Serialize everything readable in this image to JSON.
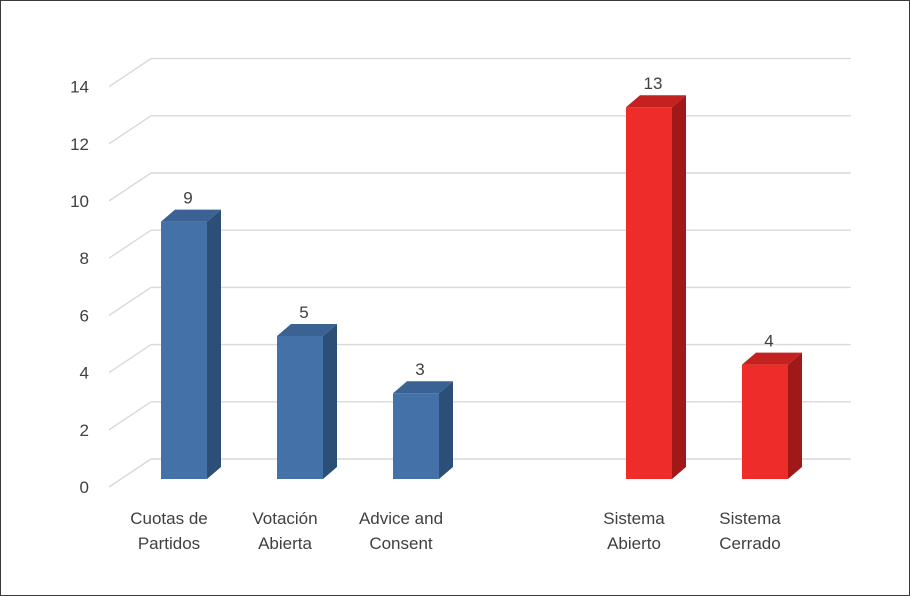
{
  "chart_data": {
    "type": "bar",
    "title": "",
    "xlabel": "",
    "ylabel": "",
    "ylim": [
      0,
      14
    ],
    "yticks": [
      0,
      2,
      4,
      6,
      8,
      10,
      12,
      14
    ],
    "grid": true,
    "legend": "none",
    "style": "3d-column",
    "categories": [
      [
        "Cuotas de",
        "Partidos"
      ],
      [
        "Votación",
        "Abierta"
      ],
      [
        "Advice and",
        "Consent"
      ],
      [
        "Sistema",
        "Abierto"
      ],
      [
        "Sistema",
        "Cerrado"
      ]
    ],
    "values": [
      9,
      5,
      3,
      13,
      4
    ],
    "colors": [
      "#4472a8",
      "#4472a8",
      "#4472a8",
      "#ee2d2a",
      "#ee2d2a"
    ],
    "side_colors": [
      "#2c4f78",
      "#2c4f78",
      "#2c4f78",
      "#a01818",
      "#a01818"
    ],
    "top_colors": [
      "#3a6393",
      "#3a6393",
      "#3a6393",
      "#c42121",
      "#c42121"
    ]
  }
}
